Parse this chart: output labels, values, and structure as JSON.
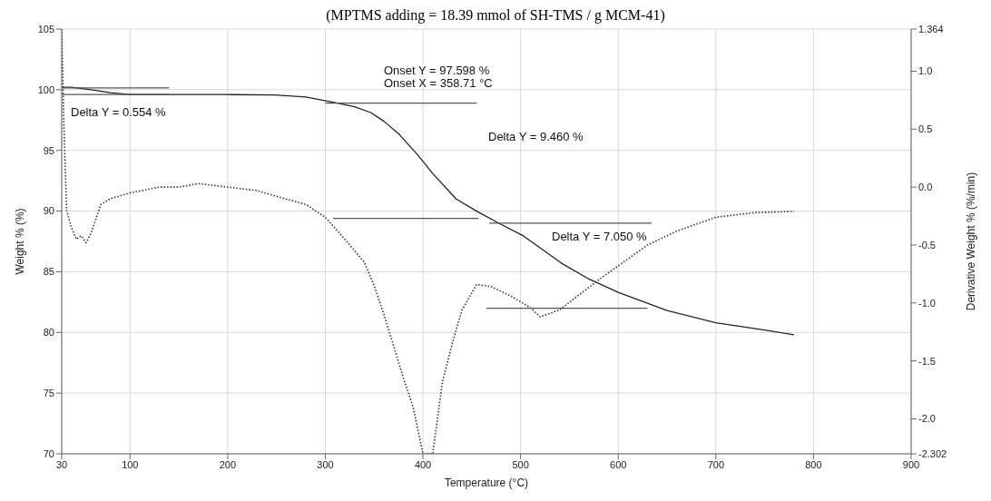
{
  "chart_data": {
    "type": "line",
    "title": "(MPTMS adding = 18.39 mmol of SH-TMS / g MCM-41)",
    "xlabel": "Temperature (°C)",
    "ylabel": "Weight % (%)",
    "y2label": "Derivative Weight % (%/min)",
    "xlim": [
      30,
      900
    ],
    "xticks": [
      30,
      100,
      200,
      300,
      400,
      500,
      600,
      700,
      800,
      900
    ],
    "ylim": [
      70,
      105
    ],
    "yticks": [
      70,
      75,
      80,
      85,
      90,
      95,
      100,
      105
    ],
    "y2lim": [
      -2.302,
      1.364
    ],
    "y2ticks": [
      -2.302,
      {
        "value": -2,
        "label": "-2.0"
      },
      -1.5,
      {
        "value": -1,
        "label": "-1.0"
      },
      -0.5,
      {
        "value": 0,
        "label": "0.0"
      },
      0.5,
      {
        "value": 1,
        "label": "1.0"
      },
      1.364
    ],
    "grid": true,
    "marker": "none",
    "series": [
      {
        "color": "#222222",
        "line_style": "solid",
        "x": [
          30,
          40,
          60,
          80,
          100,
          150,
          200,
          248,
          280,
          308,
          330,
          347,
          360,
          376,
          395,
          410,
          434,
          457,
          480,
          502,
          542,
          570,
          600,
          650,
          700,
          750,
          780
        ],
        "values": [
          100.2,
          100.2,
          100.0,
          99.75,
          99.6,
          99.6,
          99.6,
          99.57,
          99.4,
          98.97,
          98.6,
          98.1,
          97.4,
          96.3,
          94.6,
          93.1,
          91.0,
          89.9,
          88.9,
          88.0,
          85.7,
          84.4,
          83.3,
          81.8,
          80.8,
          80.2,
          79.8
        ]
      },
      {
        "color": "#333333",
        "line_style": "dotted",
        "axis": "y2",
        "x": [
          30,
          32,
          35,
          40,
          45,
          50,
          55,
          60,
          70,
          80,
          100,
          130,
          150,
          170,
          200,
          230,
          250,
          280,
          300,
          320,
          340,
          350,
          360,
          370,
          380,
          390,
          400,
          410,
          420,
          430,
          440,
          455,
          470,
          490,
          510,
          520,
          540,
          560,
          580,
          600,
          630,
          660,
          700,
          740,
          780
        ],
        "values": [
          1.364,
          0.6,
          -0.2,
          -0.35,
          -0.45,
          -0.42,
          -0.48,
          -0.4,
          -0.15,
          -0.1,
          -0.05,
          0.0,
          0.0,
          0.03,
          0.0,
          -0.03,
          -0.08,
          -0.15,
          -0.26,
          -0.45,
          -0.65,
          -0.85,
          -1.1,
          -1.37,
          -1.65,
          -1.9,
          -2.302,
          -2.302,
          -1.68,
          -1.35,
          -1.06,
          -0.84,
          -0.86,
          -0.94,
          -1.04,
          -1.12,
          -1.06,
          -0.93,
          -0.8,
          -0.68,
          -0.5,
          -0.38,
          -0.26,
          -0.22,
          -0.21
        ]
      },
      {
        "color": "#555555",
        "line_style": "solid",
        "x": [
          30,
          140
        ],
        "values": [
          100.15,
          100.15
        ]
      },
      {
        "color": "#555555",
        "line_style": "solid",
        "x": [
          30,
          140
        ],
        "values": [
          99.6,
          99.6
        ]
      },
      {
        "color": "#555555",
        "line_style": "solid",
        "x": [
          300,
          455
        ],
        "values": [
          98.9,
          98.9
        ]
      },
      {
        "color": "#555555",
        "line_style": "solid",
        "x": [
          308,
          457
        ],
        "values": [
          89.4,
          89.4
        ]
      },
      {
        "color": "#555555",
        "line_style": "solid",
        "x": [
          468,
          634
        ],
        "values": [
          89.0,
          89.0
        ]
      },
      {
        "color": "#555555",
        "line_style": "solid",
        "x": [
          465,
          630
        ],
        "values": [
          82.0,
          82.0
        ]
      }
    ],
    "annotations": [
      "Delta Y = 0.554 %",
      "Onset Y = 97.598 %",
      "Onset X = 358.71 °C",
      "Delta Y = 9.460 %",
      "Delta Y = 7.050 %"
    ]
  }
}
